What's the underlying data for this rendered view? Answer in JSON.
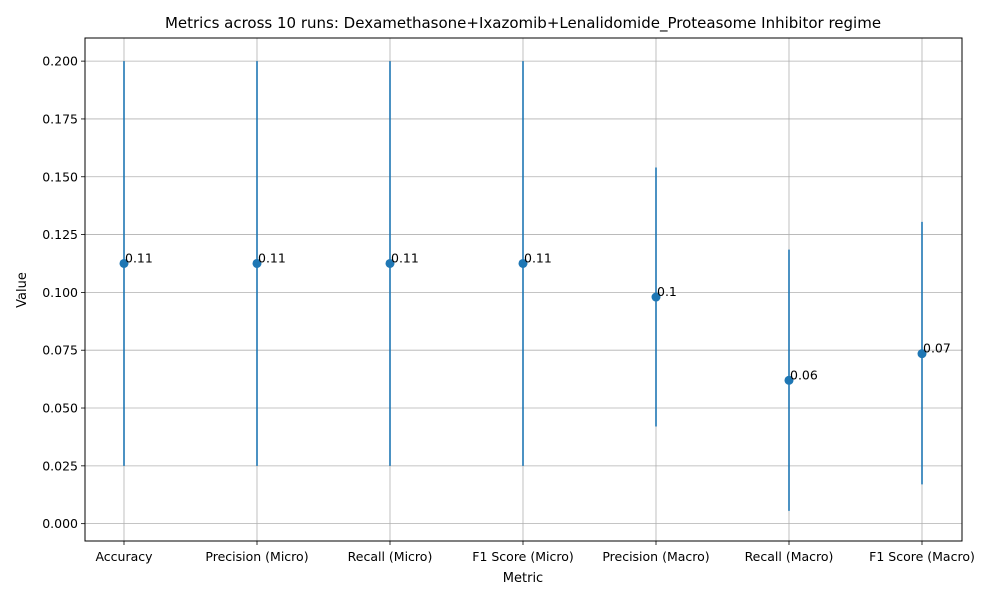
{
  "chart_data": {
    "type": "scatter",
    "title": "Metrics across 10 runs: Dexamethasone+Ixazomib+Lenalidomide_Proteasome Inhibitor regime",
    "xlabel": "Metric",
    "ylabel": "Value",
    "categories": [
      "Accuracy",
      "Precision (Micro)",
      "Recall (Micro)",
      "F1 Score (Micro)",
      "Precision (Macro)",
      "Recall (Macro)",
      "F1 Score (Macro)"
    ],
    "values": [
      0.1125,
      0.1125,
      0.1125,
      0.1125,
      0.098,
      0.062,
      0.0735
    ],
    "error_low": [
      0.025,
      0.025,
      0.025,
      0.025,
      0.042,
      0.0055,
      0.017
    ],
    "error_high": [
      0.2,
      0.2,
      0.2,
      0.2,
      0.154,
      0.1185,
      0.1305
    ],
    "point_labels": [
      "0.11",
      "0.11",
      "0.11",
      "0.11",
      "0.1",
      "0.06",
      "0.07"
    ],
    "ylim": [
      -0.0075,
      0.21
    ],
    "yticks": [
      "0.000",
      "0.025",
      "0.050",
      "0.075",
      "0.100",
      "0.125",
      "0.150",
      "0.175",
      "0.200"
    ],
    "grid": true,
    "color": "#1f77b4"
  }
}
